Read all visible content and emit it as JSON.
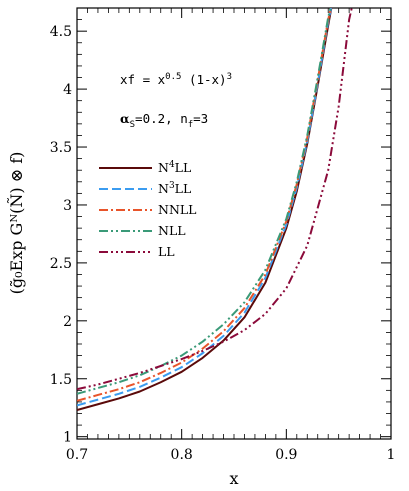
{
  "chart_data": {
    "type": "line",
    "xlabel": "x",
    "ylabel": "(g̃₀Exp Gᴺ(Ñ) ⊗ f)",
    "xlim": [
      0.7,
      1.0
    ],
    "ylim": [
      0.98,
      4.7
    ],
    "xticks": [
      0.7,
      0.8,
      0.9,
      1.0
    ],
    "xtick_labels": [
      "0.7",
      "0.8",
      "0.9",
      "1"
    ],
    "yticks": [
      1,
      1.5,
      2,
      2.5,
      3,
      3.5,
      4,
      4.5
    ],
    "ytick_labels": [
      "1",
      "1.5",
      "2",
      "2.5",
      "3",
      "3.5",
      "4",
      "4.5"
    ],
    "grid": false,
    "legend_placement": "middle-left",
    "annotations": [
      {
        "text_parts": [
          "xf = x",
          "0.5",
          " (1-x)",
          "3"
        ],
        "style": "formula"
      },
      {
        "text_parts": [
          "α",
          "S",
          "=0.2, n",
          "f",
          "=3"
        ],
        "style": "params"
      }
    ],
    "series": [
      {
        "name": "N⁴LL",
        "legend_parts": [
          "N",
          "4",
          "LL"
        ],
        "color": "#5a0a0a",
        "dash": "",
        "x": [
          0.7,
          0.72,
          0.74,
          0.76,
          0.78,
          0.8,
          0.82,
          0.84,
          0.86,
          0.88,
          0.9,
          0.91,
          0.92,
          0.93,
          0.94,
          0.945
        ],
        "y": [
          1.23,
          1.28,
          1.33,
          1.39,
          1.47,
          1.56,
          1.68,
          1.83,
          2.03,
          2.33,
          2.8,
          3.12,
          3.53,
          4.03,
          4.55,
          4.8
        ]
      },
      {
        "name": "N³LL",
        "legend_parts": [
          "N",
          "3",
          "LL"
        ],
        "color": "#3b9cf0",
        "dash": "9,4",
        "x": [
          0.7,
          0.72,
          0.74,
          0.76,
          0.78,
          0.8,
          0.82,
          0.84,
          0.86,
          0.88,
          0.9,
          0.91,
          0.92,
          0.93,
          0.94,
          0.945
        ],
        "y": [
          1.27,
          1.32,
          1.37,
          1.43,
          1.51,
          1.6,
          1.72,
          1.87,
          2.07,
          2.37,
          2.83,
          3.15,
          3.55,
          4.05,
          4.58,
          4.8
        ]
      },
      {
        "name": "NNLL",
        "legend_parts": [
          "NNLL"
        ],
        "color": "#e8542a",
        "dash": "9,3,2,3",
        "x": [
          0.7,
          0.72,
          0.74,
          0.76,
          0.78,
          0.8,
          0.82,
          0.84,
          0.86,
          0.88,
          0.9,
          0.91,
          0.92,
          0.93,
          0.94,
          0.945
        ],
        "y": [
          1.31,
          1.36,
          1.41,
          1.47,
          1.55,
          1.64,
          1.76,
          1.91,
          2.11,
          2.4,
          2.86,
          3.18,
          3.58,
          4.08,
          4.6,
          4.8
        ]
      },
      {
        "name": "NLL",
        "legend_parts": [
          "NLL"
        ],
        "color": "#3a9a78",
        "dash": "9,3,2,3,2,3",
        "x": [
          0.7,
          0.72,
          0.74,
          0.76,
          0.78,
          0.8,
          0.82,
          0.84,
          0.86,
          0.88,
          0.9,
          0.91,
          0.92,
          0.93,
          0.94,
          0.945
        ],
        "y": [
          1.37,
          1.42,
          1.47,
          1.53,
          1.61,
          1.7,
          1.82,
          1.97,
          2.16,
          2.44,
          2.88,
          3.2,
          3.6,
          4.1,
          4.62,
          4.8
        ]
      },
      {
        "name": "LL",
        "legend_parts": [
          "LL"
        ],
        "color": "#8b0a3a",
        "dash": "9,3,2,3,2,3,2,3",
        "x": [
          0.7,
          0.72,
          0.74,
          0.76,
          0.78,
          0.8,
          0.82,
          0.84,
          0.86,
          0.88,
          0.9,
          0.92,
          0.94,
          0.95,
          0.96,
          0.965
        ],
        "y": [
          1.41,
          1.45,
          1.5,
          1.55,
          1.61,
          1.67,
          1.74,
          1.82,
          1.92,
          2.06,
          2.28,
          2.65,
          3.3,
          3.85,
          4.6,
          4.8
        ]
      }
    ]
  }
}
